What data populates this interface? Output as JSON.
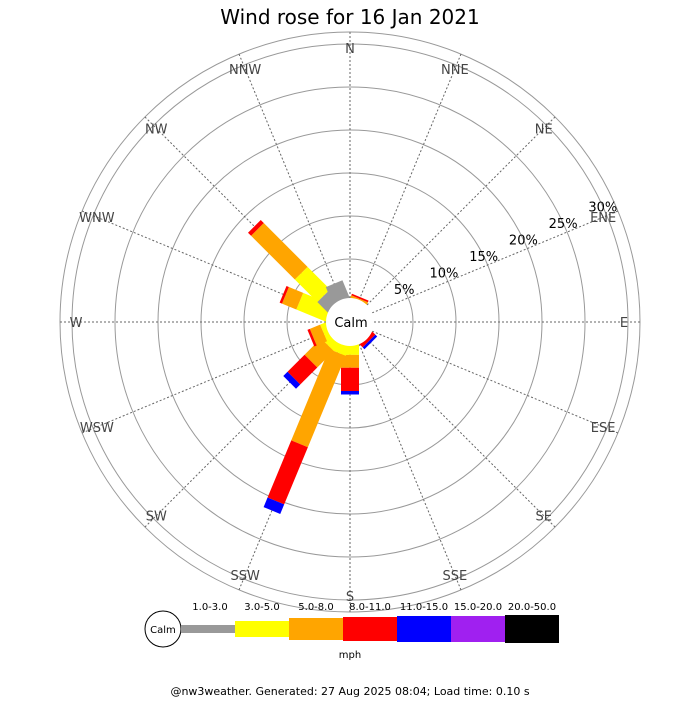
{
  "chart_data": {
    "type": "windrose",
    "title": "Wind rose for 16 Jan 2021",
    "directions": [
      "N",
      "NNE",
      "NE",
      "ENE",
      "E",
      "ESE",
      "SE",
      "SSE",
      "S",
      "SSW",
      "SW",
      "WSW",
      "W",
      "WNW",
      "NW",
      "NNW"
    ],
    "rings": [
      5,
      10,
      15,
      20,
      25,
      30
    ],
    "ring_labels": [
      "5%",
      "10%",
      "15%",
      "20%",
      "25%",
      "30%"
    ],
    "calm_label": "Calm",
    "unit_label": "mph",
    "speed_bins": [
      {
        "label": "1.0-3.0",
        "color": "#999999"
      },
      {
        "label": "3.0-5.0",
        "color": "#ffff00"
      },
      {
        "label": "5.0-8.0",
        "color": "#ffa500"
      },
      {
        "label": "8.0-11.0",
        "color": "#ff0000"
      },
      {
        "label": "11.0-15.0",
        "color": "#0000ff"
      },
      {
        "label": "15.0-20.0",
        "color": "#a020f0"
      },
      {
        "label": "20.0-50.0",
        "color": "#000000"
      }
    ],
    "series": [
      {
        "direction": "N",
        "values": [
          0,
          0,
          0,
          0,
          0,
          0,
          0
        ]
      },
      {
        "direction": "NNE",
        "values": [
          0,
          0.3,
          0.3,
          0.2,
          0,
          0,
          0
        ]
      },
      {
        "direction": "NE",
        "values": [
          0,
          0,
          0,
          0,
          0,
          0,
          0
        ]
      },
      {
        "direction": "ENE",
        "values": [
          0,
          0,
          0,
          0,
          0,
          0,
          0
        ]
      },
      {
        "direction": "E",
        "values": [
          0,
          0,
          0,
          0,
          0,
          0,
          0
        ]
      },
      {
        "direction": "ESE",
        "values": [
          0,
          0,
          0,
          0,
          0,
          0,
          0
        ]
      },
      {
        "direction": "SE",
        "values": [
          0,
          0,
          0.3,
          0.5,
          0.3,
          0,
          0
        ]
      },
      {
        "direction": "SSE",
        "values": [
          0,
          0,
          0,
          0,
          0,
          0,
          0
        ]
      },
      {
        "direction": "S",
        "values": [
          0,
          1.5,
          1.5,
          2.7,
          0.4,
          0,
          0
        ]
      },
      {
        "direction": "SSW",
        "values": [
          0,
          1.5,
          11.5,
          7.2,
          1.2,
          0,
          0
        ]
      },
      {
        "direction": "SW",
        "values": [
          0,
          1.4,
          2.7,
          2.8,
          0.7,
          0,
          0
        ]
      },
      {
        "direction": "WSW",
        "values": [
          0,
          1.0,
          1.3,
          0.3,
          0,
          0,
          0
        ]
      },
      {
        "direction": "W",
        "values": [
          0,
          0,
          0,
          0,
          0,
          0,
          0
        ]
      },
      {
        "direction": "WNW",
        "values": [
          0,
          4.0,
          1.8,
          0.3,
          0,
          0,
          0
        ]
      },
      {
        "direction": "NW",
        "values": [
          2.0,
          3.7,
          7.2,
          0.5,
          0,
          0,
          0
        ]
      },
      {
        "direction": "NNW",
        "values": [
          2.5,
          0,
          0,
          0,
          0,
          0,
          0
        ]
      }
    ],
    "grid": true
  },
  "footer": "@nw3weather. Generated: 27 Aug 2025 08:04; Load time: 0.10 s"
}
